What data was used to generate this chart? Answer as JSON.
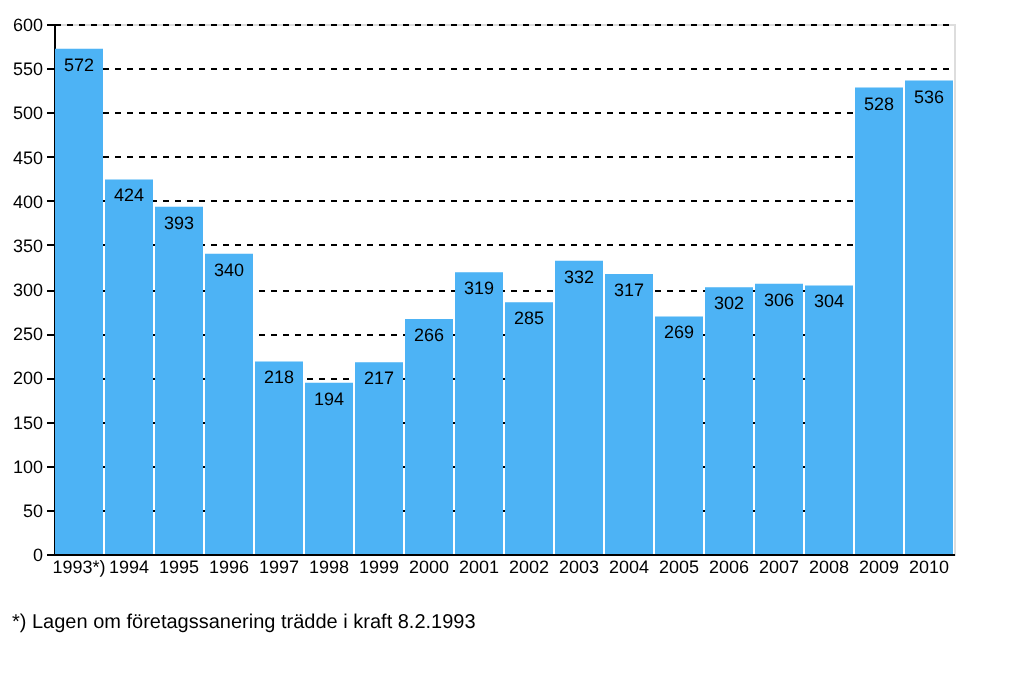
{
  "chart_data": {
    "type": "bar",
    "categories": [
      "1993*)",
      "1994",
      "1995",
      "1996",
      "1997",
      "1998",
      "1999",
      "2000",
      "2001",
      "2002",
      "2003",
      "2004",
      "2005",
      "2006",
      "2007",
      "2008",
      "2009",
      "2010"
    ],
    "values": [
      572,
      424,
      393,
      340,
      218,
      194,
      217,
      266,
      319,
      285,
      332,
      317,
      269,
      302,
      306,
      304,
      528,
      536
    ],
    "color": "#4db3f5",
    "ylim": [
      0,
      600
    ],
    "yticks": [
      0,
      50,
      100,
      150,
      200,
      250,
      300,
      350,
      400,
      450,
      500,
      550,
      600
    ],
    "grid": "y",
    "data_labels": true,
    "annotations": [
      "*) Lagen om företagssanering trädde i kraft 8.2.1993"
    ]
  }
}
